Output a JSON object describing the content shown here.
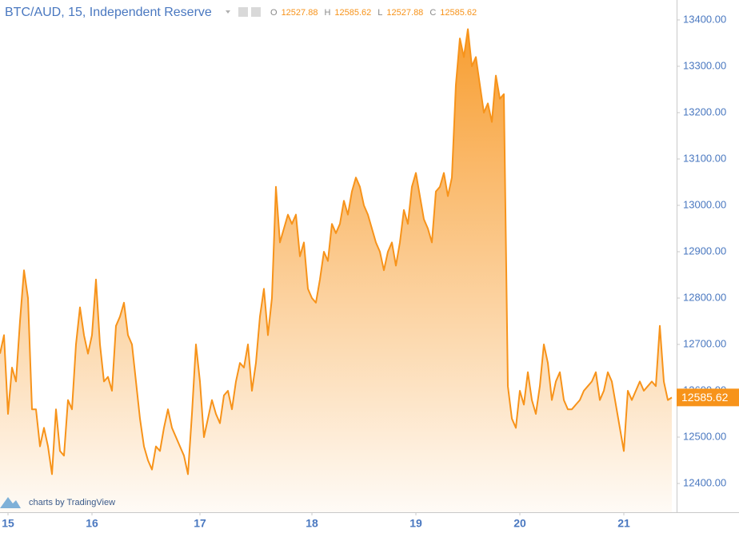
{
  "chart_data": {
    "type": "area",
    "title": "BTC/AUD, 15, Independent Reserve",
    "ohlc": [
      {
        "label": "O",
        "value": 12527.88
      },
      {
        "label": "H",
        "value": 12585.62
      },
      {
        "label": "L",
        "value": 12527.88
      },
      {
        "label": "C",
        "value": 12585.62
      }
    ],
    "last_price": 12585.62,
    "credit": "charts by TradingView",
    "x": [
      0,
      1,
      2,
      3,
      4,
      5,
      6,
      7,
      8,
      9,
      10,
      11,
      12,
      13,
      14,
      15,
      16,
      17,
      18,
      19,
      20,
      21,
      22,
      23,
      24,
      25,
      26,
      27,
      28,
      29,
      30,
      31,
      32,
      33,
      34,
      35,
      36,
      37,
      38,
      39,
      40,
      41,
      42,
      43,
      44,
      45,
      46,
      47,
      48,
      49,
      50,
      51,
      52,
      53,
      54,
      55,
      56,
      57,
      58,
      59,
      60,
      61,
      62,
      63,
      64,
      65,
      66,
      67,
      68,
      69,
      70,
      71,
      72,
      73,
      74,
      75,
      76,
      77,
      78,
      79,
      80,
      81,
      82,
      83,
      84,
      85,
      86,
      87,
      88,
      89,
      90,
      91,
      92,
      93,
      94,
      95,
      96,
      97,
      98,
      99,
      100,
      101,
      102,
      103,
      104,
      105,
      106,
      107,
      108,
      109,
      110,
      111,
      112,
      113,
      114,
      115,
      116,
      117,
      118,
      119,
      120,
      121,
      122,
      123,
      124,
      125,
      126,
      127,
      128,
      129,
      130,
      131,
      132,
      133,
      134,
      135,
      136,
      137,
      138,
      139,
      140,
      141,
      142,
      143,
      144,
      145,
      146,
      147,
      148,
      149,
      150,
      151,
      152,
      153,
      154,
      155,
      156,
      157,
      158,
      159,
      160,
      161,
      162,
      163,
      164,
      165,
      166,
      167,
      168
    ],
    "series": [
      {
        "name": "BTC/AUD",
        "color": "#f7931a",
        "values": [
          12680,
          12720,
          12550,
          12650,
          12620,
          12750,
          12860,
          12800,
          12560,
          12560,
          12480,
          12520,
          12480,
          12420,
          12560,
          12470,
          12460,
          12580,
          12560,
          12700,
          12780,
          12720,
          12680,
          12720,
          12840,
          12700,
          12620,
          12630,
          12600,
          12740,
          12760,
          12790,
          12720,
          12700,
          12620,
          12540,
          12480,
          12450,
          12430,
          12480,
          12470,
          12520,
          12560,
          12520,
          12500,
          12480,
          12460,
          12420,
          12550,
          12700,
          12620,
          12500,
          12540,
          12580,
          12550,
          12530,
          12590,
          12600,
          12560,
          12620,
          12660,
          12650,
          12700,
          12600,
          12660,
          12760,
          12820,
          12720,
          12800,
          13040,
          12920,
          12950,
          12980,
          12960,
          12980,
          12890,
          12920,
          12820,
          12800,
          12790,
          12840,
          12900,
          12880,
          12960,
          12940,
          12960,
          13010,
          12980,
          13030,
          13060,
          13040,
          13000,
          12980,
          12950,
          12920,
          12900,
          12860,
          12900,
          12920,
          12870,
          12920,
          12990,
          12960,
          13040,
          13070,
          13020,
          12970,
          12950,
          12920,
          13030,
          13040,
          13070,
          13020,
          13060,
          13260,
          13360,
          13320,
          13380,
          13300,
          13320,
          13260,
          13200,
          13220,
          13180,
          13280,
          13230,
          13240,
          12610,
          12540,
          12520,
          12600,
          12570,
          12640,
          12580,
          12550,
          12610,
          12700,
          12660,
          12580,
          12620,
          12640,
          12580,
          12560,
          12560,
          12570,
          12580,
          12600,
          12610,
          12620,
          12640,
          12580,
          12600,
          12640,
          12620,
          12570,
          12520,
          12470,
          12600,
          12580,
          12600,
          12620,
          12600,
          12610,
          12620,
          12610,
          12740,
          12620,
          12580,
          12585.62
        ]
      }
    ],
    "xlim": [
      0,
      169.2
    ],
    "xticks": [
      {
        "value": 2,
        "label": "15"
      },
      {
        "value": 23,
        "label": "16"
      },
      {
        "value": 50,
        "label": "17"
      },
      {
        "value": 78,
        "label": "18"
      },
      {
        "value": 104,
        "label": "19"
      },
      {
        "value": 130,
        "label": "20"
      },
      {
        "value": 156,
        "label": "21"
      }
    ],
    "ylim": [
      12338,
      13443
    ],
    "yticks": [
      {
        "value": 12400,
        "label": "12400.00"
      },
      {
        "value": 12500,
        "label": "12500.00"
      },
      {
        "value": 12600,
        "label": "12600.00"
      },
      {
        "value": 12700,
        "label": "12700.00"
      },
      {
        "value": 12800,
        "label": "12800.00"
      },
      {
        "value": 12900,
        "label": "12900.00"
      },
      {
        "value": 13000,
        "label": "13000.00"
      },
      {
        "value": 13100,
        "label": "13100.00"
      },
      {
        "value": 13200,
        "label": "13200.00"
      },
      {
        "value": 13300,
        "label": "13300.00"
      },
      {
        "value": 13400,
        "label": "13400.00"
      }
    ]
  }
}
